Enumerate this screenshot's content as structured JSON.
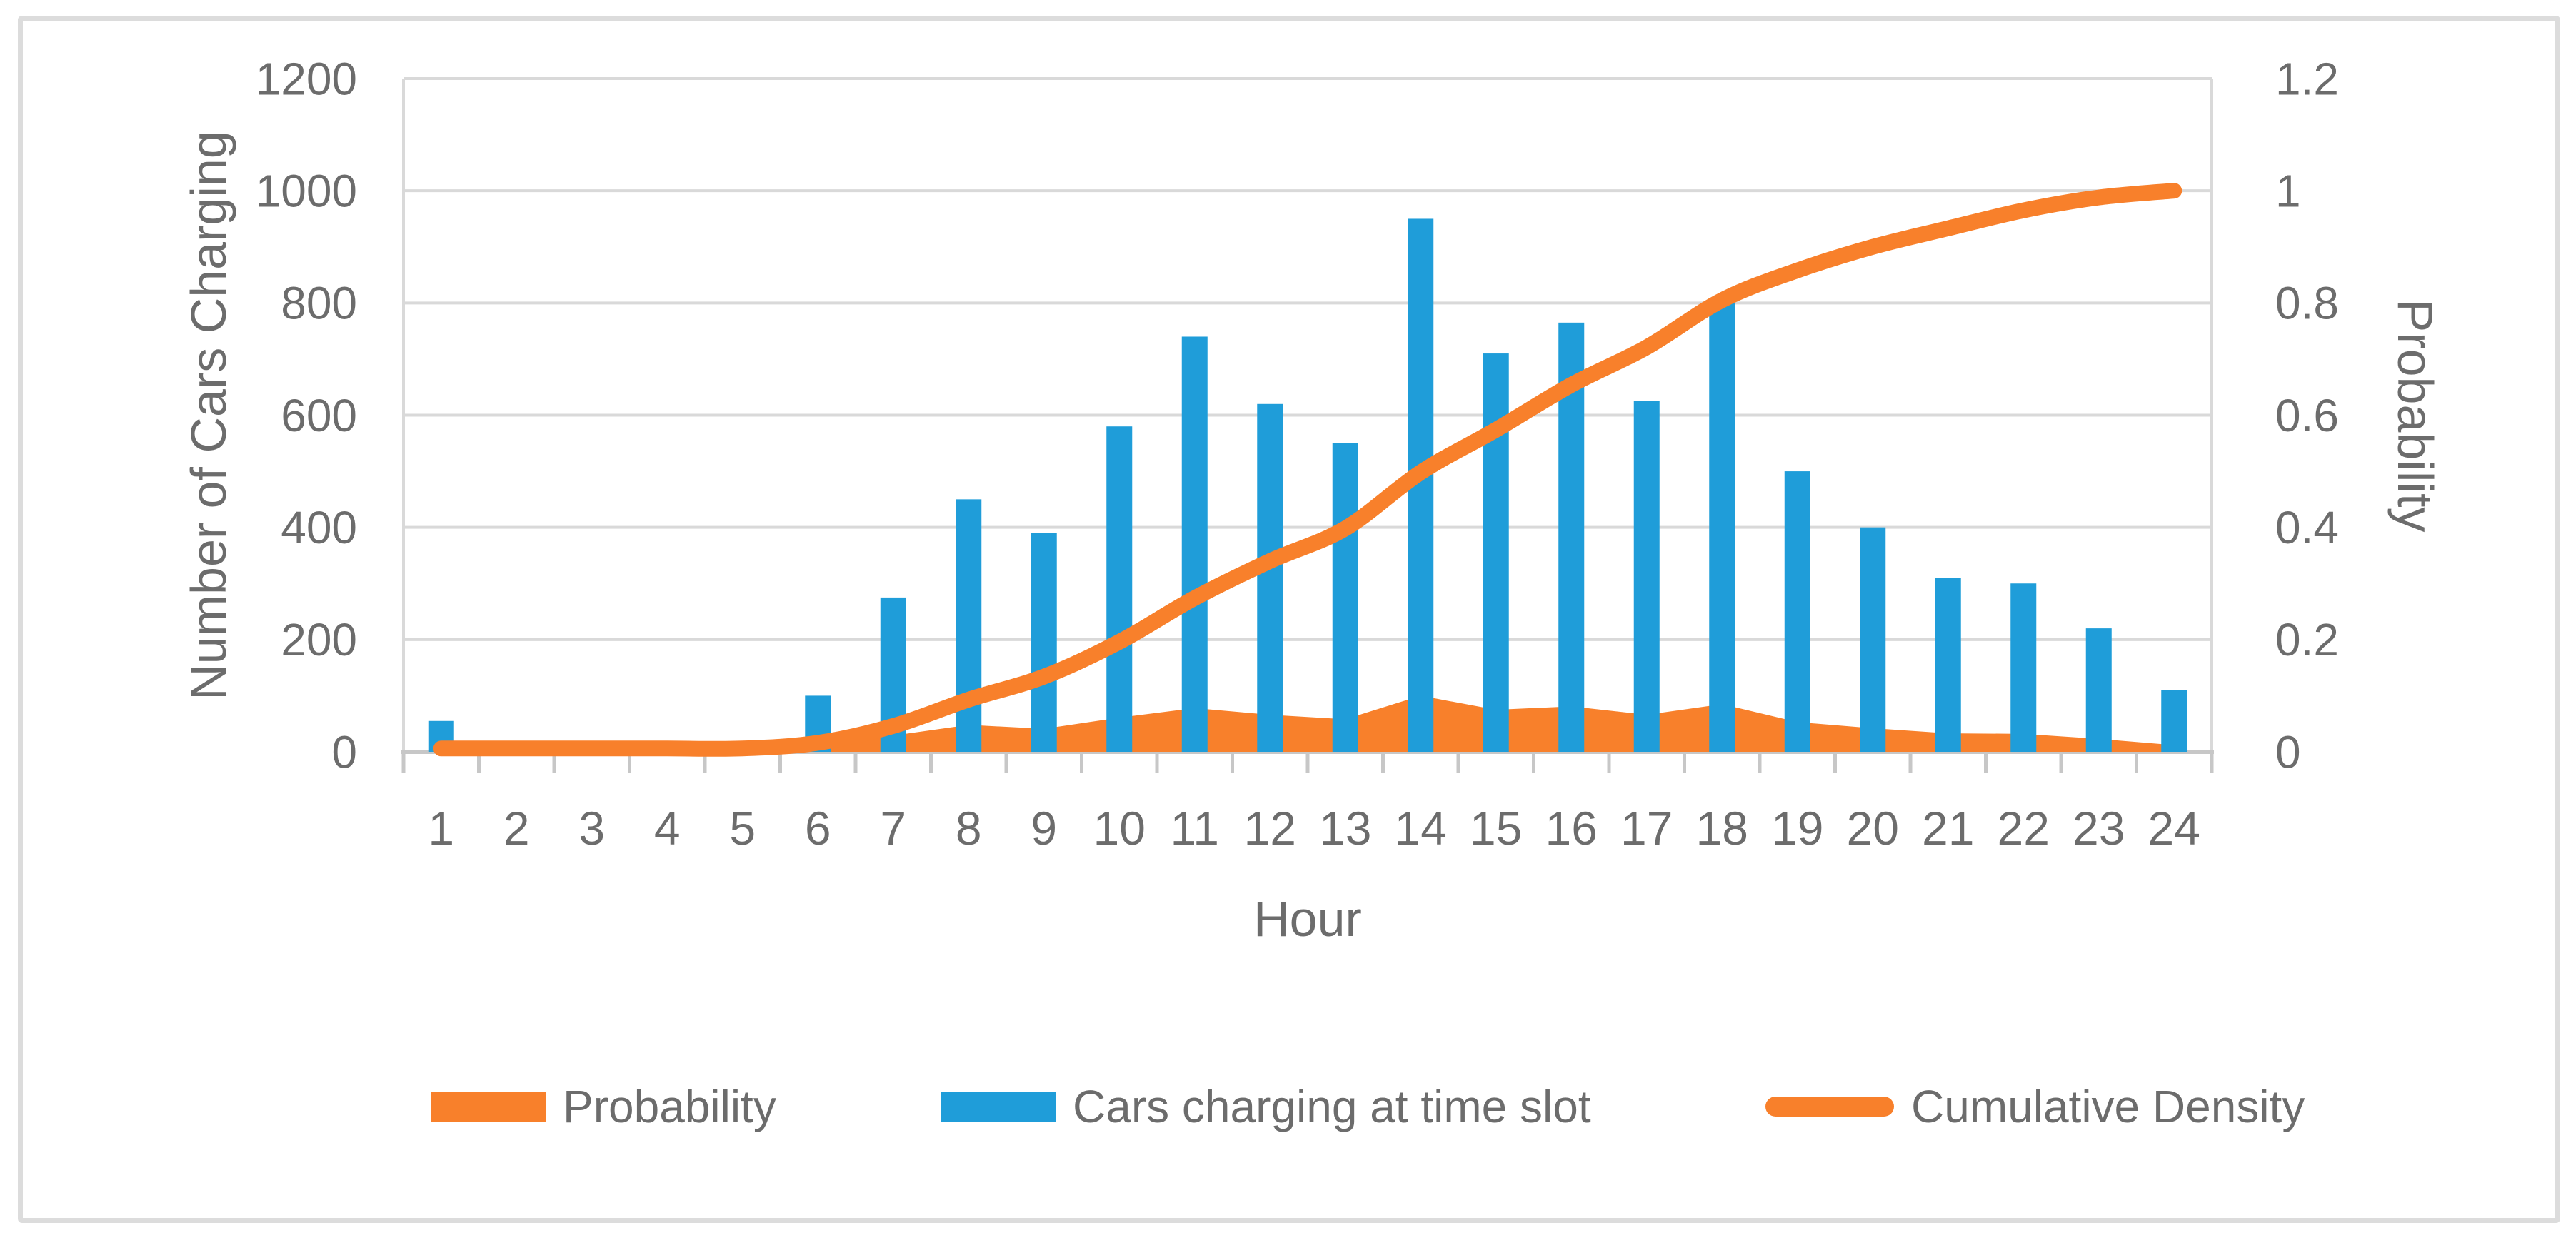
{
  "figure": {
    "background": "#FFFFFF",
    "border_color": "#DCDCDC"
  },
  "chart_data": {
    "type": "combo",
    "title": "",
    "xlabel": "Hour",
    "x": [
      1,
      2,
      3,
      4,
      5,
      6,
      7,
      8,
      9,
      10,
      11,
      12,
      13,
      14,
      15,
      16,
      17,
      18,
      19,
      20,
      21,
      22,
      23,
      24
    ],
    "x_tick_labels": [
      "1",
      "2",
      "3",
      "4",
      "5",
      "6",
      "7",
      "8",
      "9",
      "10",
      "11",
      "12",
      "13",
      "14",
      "15",
      "16",
      "17",
      "18",
      "19",
      "20",
      "21",
      "22",
      "23",
      "24"
    ],
    "left_axis": {
      "label": "Number of Cars Charging",
      "min": 0,
      "max": 1200,
      "step": 200,
      "tick_labels": [
        "0",
        "200",
        "400",
        "600",
        "800",
        "1000",
        "1200"
      ]
    },
    "right_axis": {
      "label": "Probability",
      "min": 0,
      "max": 1.2,
      "step": 0.2,
      "tick_labels": [
        "0",
        "0.2",
        "0.4",
        "0.6",
        "0.8",
        "1",
        "1.2"
      ]
    },
    "grid": true,
    "legend_position": "bottom",
    "series": [
      {
        "name": "Probability",
        "type": "area",
        "axis": "right",
        "color": "#F8802B",
        "values": [
          0.006,
          0,
          0,
          0,
          0,
          0.011,
          0.029,
          0.048,
          0.041,
          0.061,
          0.078,
          0.066,
          0.058,
          0.1,
          0.075,
          0.081,
          0.066,
          0.085,
          0.053,
          0.042,
          0.033,
          0.032,
          0.023,
          0.012
        ]
      },
      {
        "name": "Cars charging at time slot",
        "type": "bar",
        "axis": "left",
        "color": "#1F9DD9",
        "values": [
          55,
          0,
          0,
          0,
          0,
          100,
          275,
          450,
          390,
          580,
          740,
          620,
          550,
          950,
          710,
          765,
          625,
          800,
          500,
          400,
          310,
          300,
          220,
          110
        ]
      },
      {
        "name": "Cumulative Density",
        "type": "line",
        "axis": "right",
        "color": "#F8802B",
        "values": [
          0.006,
          0.006,
          0.006,
          0.006,
          0.006,
          0.016,
          0.046,
          0.093,
          0.134,
          0.196,
          0.274,
          0.34,
          0.398,
          0.498,
          0.574,
          0.654,
          0.721,
          0.805,
          0.858,
          0.9,
          0.933,
          0.965,
          0.988,
          1.0
        ]
      }
    ],
    "style": {
      "grid_color": "#D9D9D9",
      "axis_line_color": "#C7C7C7",
      "text_color": "#6C6C6C"
    }
  }
}
